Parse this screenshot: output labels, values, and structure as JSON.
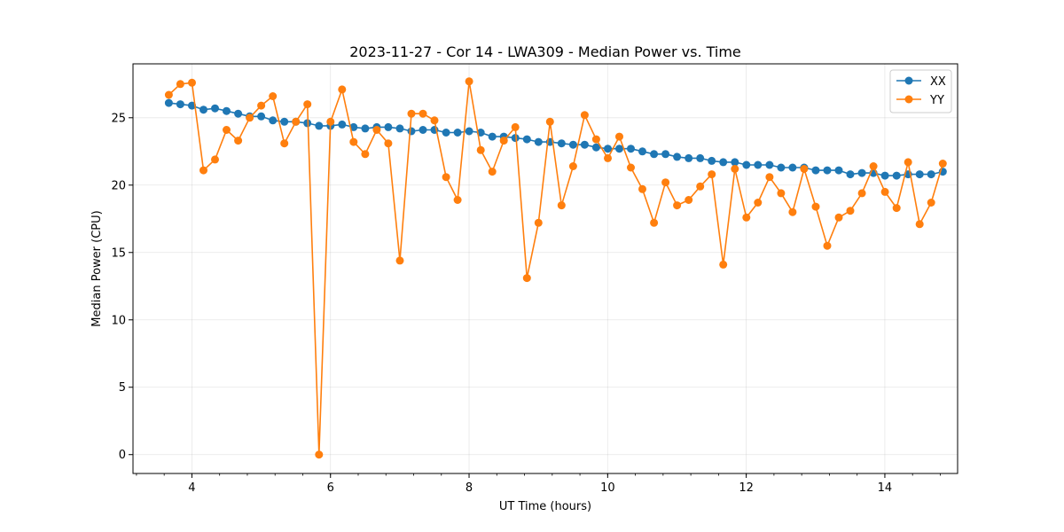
{
  "chart_data": {
    "type": "line",
    "title": "2023-11-27 - Cor 14 - LWA309 - Median Power vs. Time",
    "xlabel": "UT Time (hours)",
    "ylabel": "Median Power (CPU)",
    "xlim": [
      3.15,
      15.05
    ],
    "ylim": [
      -1.4,
      29.0
    ],
    "xticks": [
      4,
      6,
      8,
      10,
      12,
      14
    ],
    "xtick_labels": [
      "4",
      "6",
      "8",
      "10",
      "12",
      "14"
    ],
    "x_minor_step": 0.4,
    "yticks": [
      0,
      5,
      10,
      15,
      20,
      25
    ],
    "ytick_labels": [
      "0",
      "5",
      "10",
      "15",
      "20",
      "25"
    ],
    "grid": true,
    "legend_position": "top-right",
    "x_start": 3.667,
    "x_step": 0.1667,
    "series": [
      {
        "name": "XX",
        "color": "#1f77b4",
        "values": [
          26.1,
          26.0,
          25.9,
          25.6,
          25.7,
          25.5,
          25.3,
          25.1,
          25.1,
          24.8,
          24.7,
          24.7,
          24.6,
          24.4,
          24.4,
          24.5,
          24.3,
          24.2,
          24.3,
          24.3,
          24.2,
          24.0,
          24.1,
          24.1,
          23.9,
          23.9,
          24.0,
          23.9,
          23.6,
          23.6,
          23.5,
          23.4,
          23.2,
          23.2,
          23.1,
          23.0,
          23.0,
          22.8,
          22.7,
          22.7,
          22.7,
          22.5,
          22.3,
          22.3,
          22.1,
          22.0,
          22.0,
          21.8,
          21.7,
          21.7,
          21.5,
          21.5,
          21.5,
          21.3,
          21.3,
          21.3,
          21.1,
          21.1,
          21.1,
          20.8,
          20.9,
          20.9,
          20.7,
          20.7,
          20.8,
          20.8,
          20.8,
          21.0
        ]
      },
      {
        "name": "YY",
        "color": "#ff7f0e",
        "values": [
          26.7,
          27.5,
          27.6,
          21.1,
          21.9,
          24.1,
          23.3,
          25.0,
          25.9,
          26.6,
          23.1,
          24.7,
          26.0,
          0.0,
          24.7,
          27.1,
          23.2,
          22.3,
          24.1,
          23.1,
          14.4,
          25.3,
          25.3,
          24.8,
          20.6,
          18.9,
          27.7,
          22.6,
          21.0,
          23.3,
          24.3,
          13.1,
          17.2,
          24.7,
          18.5,
          21.4,
          25.2,
          23.4,
          22.0,
          23.6,
          21.3,
          19.7,
          17.2,
          20.2,
          18.5,
          18.9,
          19.9,
          20.8,
          14.1,
          21.2,
          17.6,
          18.7,
          20.6,
          19.4,
          18.0,
          21.2,
          18.4,
          15.5,
          17.6,
          18.1,
          19.4,
          21.4,
          19.5,
          18.3,
          21.7,
          17.1,
          18.7,
          21.6
        ]
      }
    ]
  }
}
